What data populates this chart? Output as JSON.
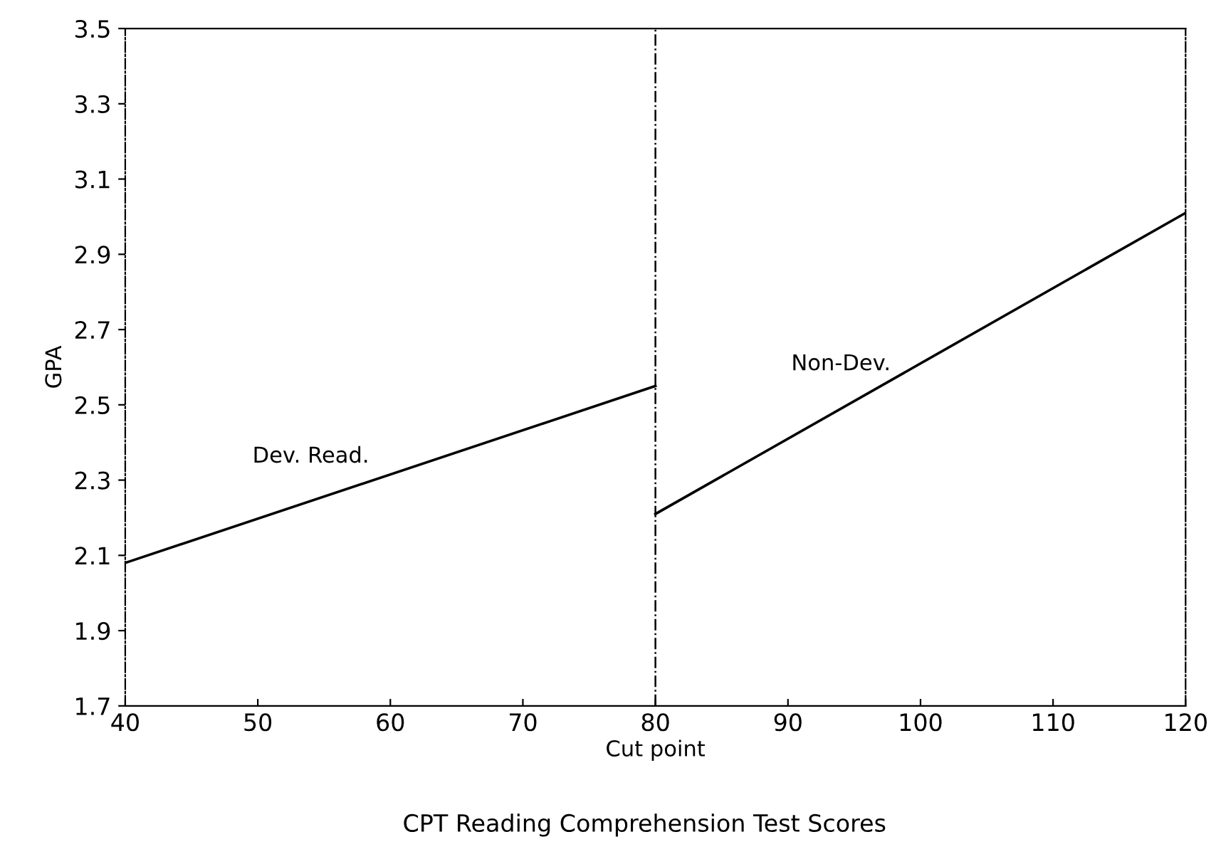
{
  "chart_data": {
    "type": "line",
    "xlabel": "Cut point",
    "ylabel": "GPA",
    "annotations": [
      "CPT Reading Comprehension Test Scores"
    ],
    "series": [
      {
        "name": "Dev. Read.",
        "color": "#000000",
        "x": [
          40,
          80
        ],
        "values": [
          2.08,
          2.55
        ]
      },
      {
        "name": "Non-Dev.",
        "color": "#000000",
        "x": [
          80,
          120
        ],
        "values": [
          2.21,
          3.01
        ]
      }
    ],
    "xlim": [
      40,
      120
    ],
    "xticks": [
      40,
      50,
      60,
      70,
      80,
      90,
      100,
      110,
      120
    ],
    "ylim": [
      1.7,
      3.5
    ],
    "yticks": [
      1.7,
      1.9,
      2.1,
      2.3,
      2.5,
      2.7,
      2.9,
      3.1,
      3.3,
      3.5
    ],
    "ref_lines": [
      {
        "axis": "x",
        "value": 80,
        "color": "#000000",
        "line_style": "dashdot"
      }
    ],
    "grid": false,
    "legend": false,
    "marker": "none",
    "line_style": "solid"
  }
}
